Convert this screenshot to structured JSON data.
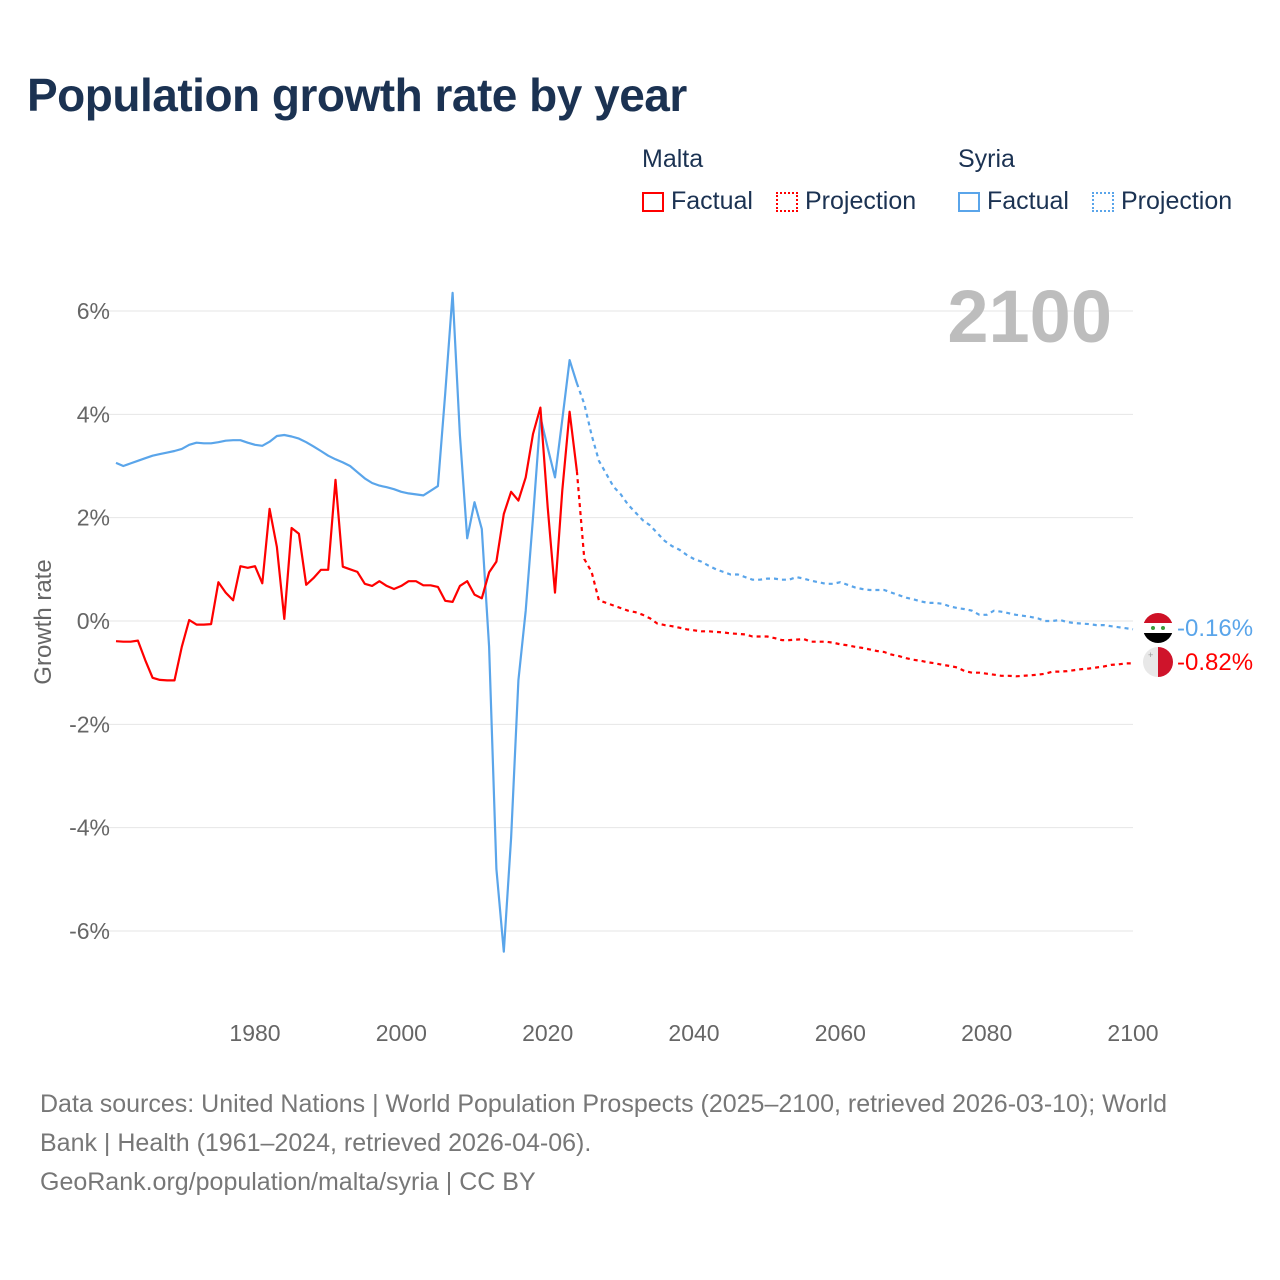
{
  "title": "Population growth rate by year",
  "legend": {
    "groups": [
      {
        "name": "Malta",
        "color": "#ff0000",
        "factual": "Factual",
        "projection": "Projection"
      },
      {
        "name": "Syria",
        "color": "#5aa5ea",
        "factual": "Factual",
        "projection": "Projection"
      }
    ]
  },
  "year_display": "2100",
  "footer": {
    "line1": "Data sources: United Nations | World Population Prospects (2025–2100, retrieved 2026-03-10); World",
    "line2": "Bank | Health (1961–2024, retrieved 2026-04-06).",
    "line3": "GeoRank.org/population/malta/syria | CC BY"
  },
  "chart_data": {
    "type": "line",
    "title": "Population growth rate by year",
    "xlabel": "",
    "ylabel": "Growth rate",
    "xlim": [
      1961,
      2100
    ],
    "ylim": [
      -7.3,
      6.5
    ],
    "grid": true,
    "legend_placement": "top-right",
    "x_ticks": [
      {
        "v": 1980,
        "label": "1980"
      },
      {
        "v": 2000,
        "label": "2000"
      },
      {
        "v": 2020,
        "label": "2020"
      },
      {
        "v": 2040,
        "label": "2040"
      },
      {
        "v": 2060,
        "label": "2060"
      },
      {
        "v": 2080,
        "label": "2080"
      },
      {
        "v": 2100,
        "label": "2100"
      }
    ],
    "y_ticks": [
      {
        "v": 6,
        "label": "6%"
      },
      {
        "v": 4,
        "label": "4%"
      },
      {
        "v": 2,
        "label": "2%"
      },
      {
        "v": 0,
        "label": "0%"
      },
      {
        "v": -2,
        "label": "-2%"
      },
      {
        "v": -4,
        "label": "-4%"
      },
      {
        "v": -6,
        "label": "-6%"
      }
    ],
    "series": [
      {
        "name": "Syria",
        "kind": "factual",
        "color": "#5aa5ea",
        "x_start": 1961,
        "values": [
          3.06,
          3.0,
          3.05,
          3.1,
          3.15,
          3.2,
          3.23,
          3.26,
          3.29,
          3.33,
          3.41,
          3.45,
          3.44,
          3.44,
          3.46,
          3.49,
          3.5,
          3.5,
          3.45,
          3.41,
          3.39,
          3.47,
          3.58,
          3.6,
          3.57,
          3.53,
          3.46,
          3.38,
          3.29,
          3.2,
          3.13,
          3.07,
          3.0,
          2.88,
          2.76,
          2.67,
          2.62,
          2.59,
          2.55,
          2.5,
          2.47,
          2.45,
          2.43,
          2.52,
          2.61,
          4.4,
          6.35,
          3.6,
          1.6,
          2.3,
          1.78,
          -0.5,
          -4.8,
          -6.4,
          -4.2,
          -1.15,
          0.2,
          2.0,
          3.95,
          3.35,
          2.78,
          3.9,
          5.05,
          4.6
        ]
      },
      {
        "name": "Syria",
        "kind": "projection",
        "color": "#5aa5ea",
        "x_start": 2024,
        "values": [
          4.6,
          4.2,
          3.6,
          3.1,
          2.85,
          2.6,
          2.45,
          2.25,
          2.1,
          1.95,
          1.85,
          1.7,
          1.55,
          1.45,
          1.38,
          1.28,
          1.2,
          1.15,
          1.07,
          1.0,
          0.95,
          0.9,
          0.9,
          0.85,
          0.8,
          0.8,
          0.82,
          0.82,
          0.8,
          0.8,
          0.85,
          0.82,
          0.78,
          0.75,
          0.72,
          0.72,
          0.75,
          0.7,
          0.65,
          0.62,
          0.6,
          0.6,
          0.6,
          0.55,
          0.5,
          0.45,
          0.42,
          0.38,
          0.35,
          0.35,
          0.33,
          0.28,
          0.25,
          0.23,
          0.2,
          0.12,
          0.12,
          0.2,
          0.18,
          0.15,
          0.12,
          0.1,
          0.08,
          0.05,
          0.0,
          0.0,
          0.02,
          -0.02,
          -0.04,
          -0.05,
          -0.06,
          -0.08,
          -0.08,
          -0.1,
          -0.12,
          -0.14,
          -0.16
        ]
      },
      {
        "name": "Malta",
        "kind": "factual",
        "color": "#ff0000",
        "x_start": 1961,
        "values": [
          -0.39,
          -0.4,
          -0.4,
          -0.38,
          -0.76,
          -1.1,
          -1.14,
          -1.15,
          -1.15,
          -0.5,
          0.02,
          -0.07,
          -0.07,
          -0.06,
          0.75,
          0.55,
          0.4,
          1.06,
          1.03,
          1.06,
          0.73,
          2.17,
          1.43,
          0.04,
          1.8,
          1.69,
          0.7,
          0.83,
          0.99,
          0.99,
          2.73,
          1.05,
          1.0,
          0.95,
          0.72,
          0.68,
          0.77,
          0.68,
          0.62,
          0.68,
          0.77,
          0.77,
          0.69,
          0.69,
          0.66,
          0.39,
          0.37,
          0.68,
          0.77,
          0.51,
          0.44,
          0.94,
          1.15,
          2.07,
          2.5,
          2.33,
          2.78,
          3.62,
          4.13,
          2.2,
          0.55,
          2.53,
          4.05,
          2.9
        ]
      },
      {
        "name": "Malta",
        "kind": "projection",
        "color": "#ff0000",
        "x_start": 2024,
        "values": [
          2.9,
          1.2,
          0.95,
          0.4,
          0.35,
          0.3,
          0.25,
          0.2,
          0.17,
          0.12,
          0.05,
          -0.05,
          -0.08,
          -0.1,
          -0.13,
          -0.16,
          -0.18,
          -0.2,
          -0.2,
          -0.21,
          -0.22,
          -0.24,
          -0.25,
          -0.26,
          -0.3,
          -0.3,
          -0.3,
          -0.33,
          -0.37,
          -0.37,
          -0.36,
          -0.35,
          -0.4,
          -0.4,
          -0.4,
          -0.42,
          -0.45,
          -0.47,
          -0.5,
          -0.52,
          -0.55,
          -0.58,
          -0.6,
          -0.65,
          -0.68,
          -0.72,
          -0.75,
          -0.77,
          -0.8,
          -0.82,
          -0.85,
          -0.87,
          -0.9,
          -0.97,
          -1.0,
          -1.0,
          -1.02,
          -1.04,
          -1.06,
          -1.06,
          -1.07,
          -1.06,
          -1.05,
          -1.04,
          -1.02,
          -0.98,
          -0.98,
          -0.97,
          -0.95,
          -0.93,
          -0.92,
          -0.9,
          -0.88,
          -0.85,
          -0.84,
          -0.82,
          -0.82
        ]
      }
    ],
    "end_labels": [
      {
        "country": "Syria",
        "label": "-0.16%",
        "value": -0.16,
        "color": "#5aa5ea"
      },
      {
        "country": "Malta",
        "label": "-0.82%",
        "value": -0.82,
        "color": "#ff0000"
      }
    ]
  }
}
